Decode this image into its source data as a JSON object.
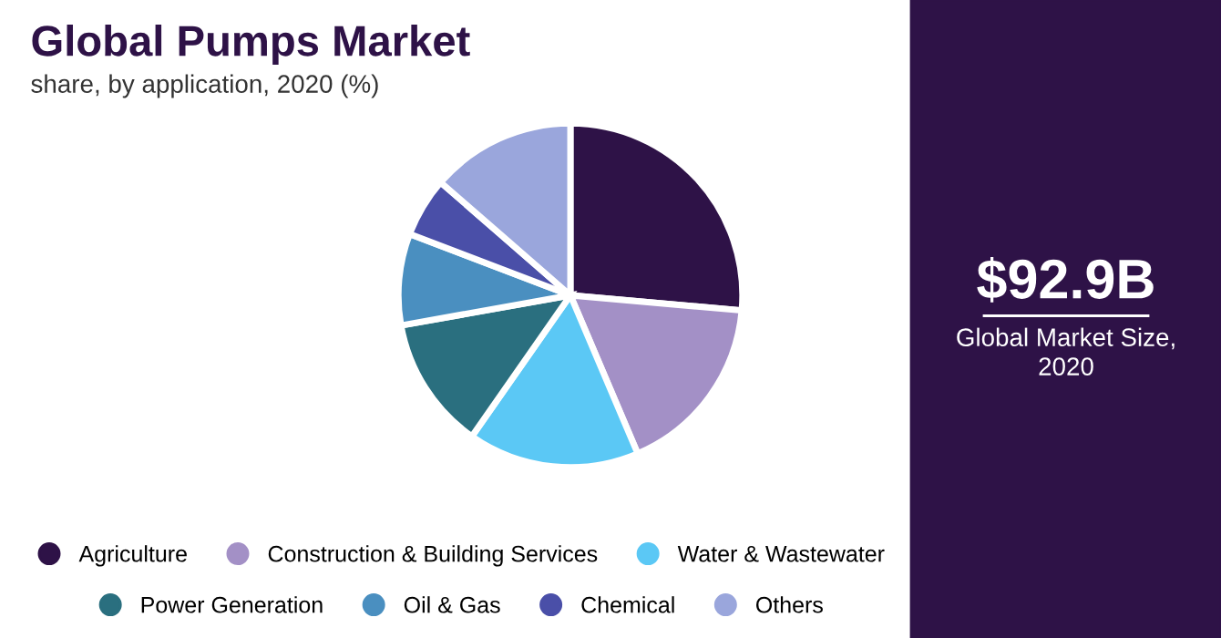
{
  "chart_data": {
    "type": "pie",
    "title": "Global Pumps Market",
    "subtitle": "share, by application, 2020 (%)",
    "categories": [
      "Agriculture",
      "Construction & Building Services",
      "Water & Wastewater",
      "Power Generation",
      "Oil & Gas",
      "Chemical",
      "Others"
    ],
    "values": [
      26.4,
      17.2,
      16.1,
      12.5,
      8.6,
      5.6,
      13.6
    ],
    "colors": [
      "#2e1247",
      "#a390c6",
      "#5bc8f5",
      "#2a6f7f",
      "#4a8fc0",
      "#4a4fa8",
      "#9aa6dc"
    ],
    "legend": "bottom",
    "annotations": [
      "$92.9B",
      "Global Market Size,\n2020"
    ]
  }
}
